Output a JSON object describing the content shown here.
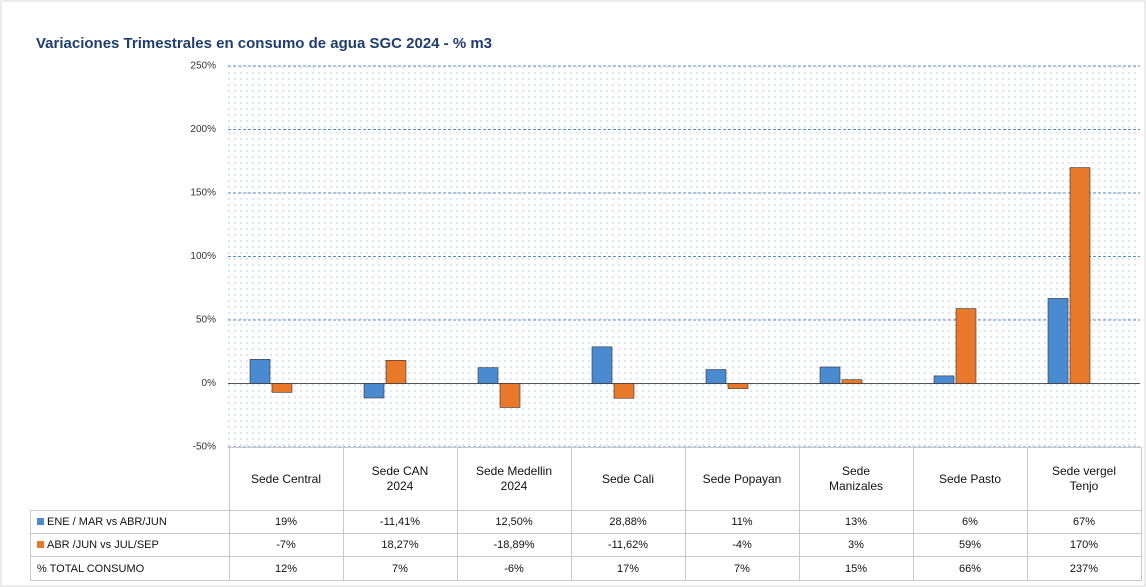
{
  "chart_data": {
    "type": "bar",
    "title": "Variaciones  Trimestrales en consumo de agua SGC 2024 - % m3",
    "categories": [
      "Sede Central",
      "Sede CAN 2024",
      "Sede Medellin 2024",
      "Sede Cali",
      "Sede Popayan",
      "Sede Manizales",
      "Sede Pasto",
      "Sede vergel Tenjo"
    ],
    "series": [
      {
        "name": "ENE / MAR vs ABR/JUN",
        "color": "#4a8ad0",
        "values": [
          19,
          -11.41,
          12.5,
          28.88,
          11,
          13,
          6,
          67
        ],
        "value_labels": [
          "19%",
          "-11,41%",
          "12,50%",
          "28,88%",
          "11%",
          "13%",
          "6%",
          "67%"
        ]
      },
      {
        "name": "ABR /JUN vs JUL/SEP",
        "color": "#e8782a",
        "values": [
          -7,
          18.27,
          -18.89,
          -11.62,
          -4,
          3,
          59,
          170
        ],
        "value_labels": [
          "-7%",
          "18,27%",
          "-18,89%",
          "-11,62%",
          "-4%",
          "3%",
          "59%",
          "170%"
        ]
      }
    ],
    "table_row": {
      "name": "% TOTAL CONSUMO",
      "values": [
        12,
        7,
        -6,
        17,
        7,
        15,
        66,
        237
      ],
      "value_labels": [
        "12%",
        "7%",
        "-6%",
        "17%",
        "7%",
        "15%",
        "66%",
        "237%"
      ]
    },
    "ylim": [
      -50,
      250
    ],
    "yticks": [
      {
        "value": -50,
        "label": "-50%"
      },
      {
        "value": 0,
        "label": "0%"
      },
      {
        "value": 50,
        "label": "50%"
      },
      {
        "value": 100,
        "label": "100%"
      },
      {
        "value": 150,
        "label": "150%"
      },
      {
        "value": 200,
        "label": "200%"
      },
      {
        "value": 250,
        "label": "250%"
      }
    ],
    "grid": true
  }
}
